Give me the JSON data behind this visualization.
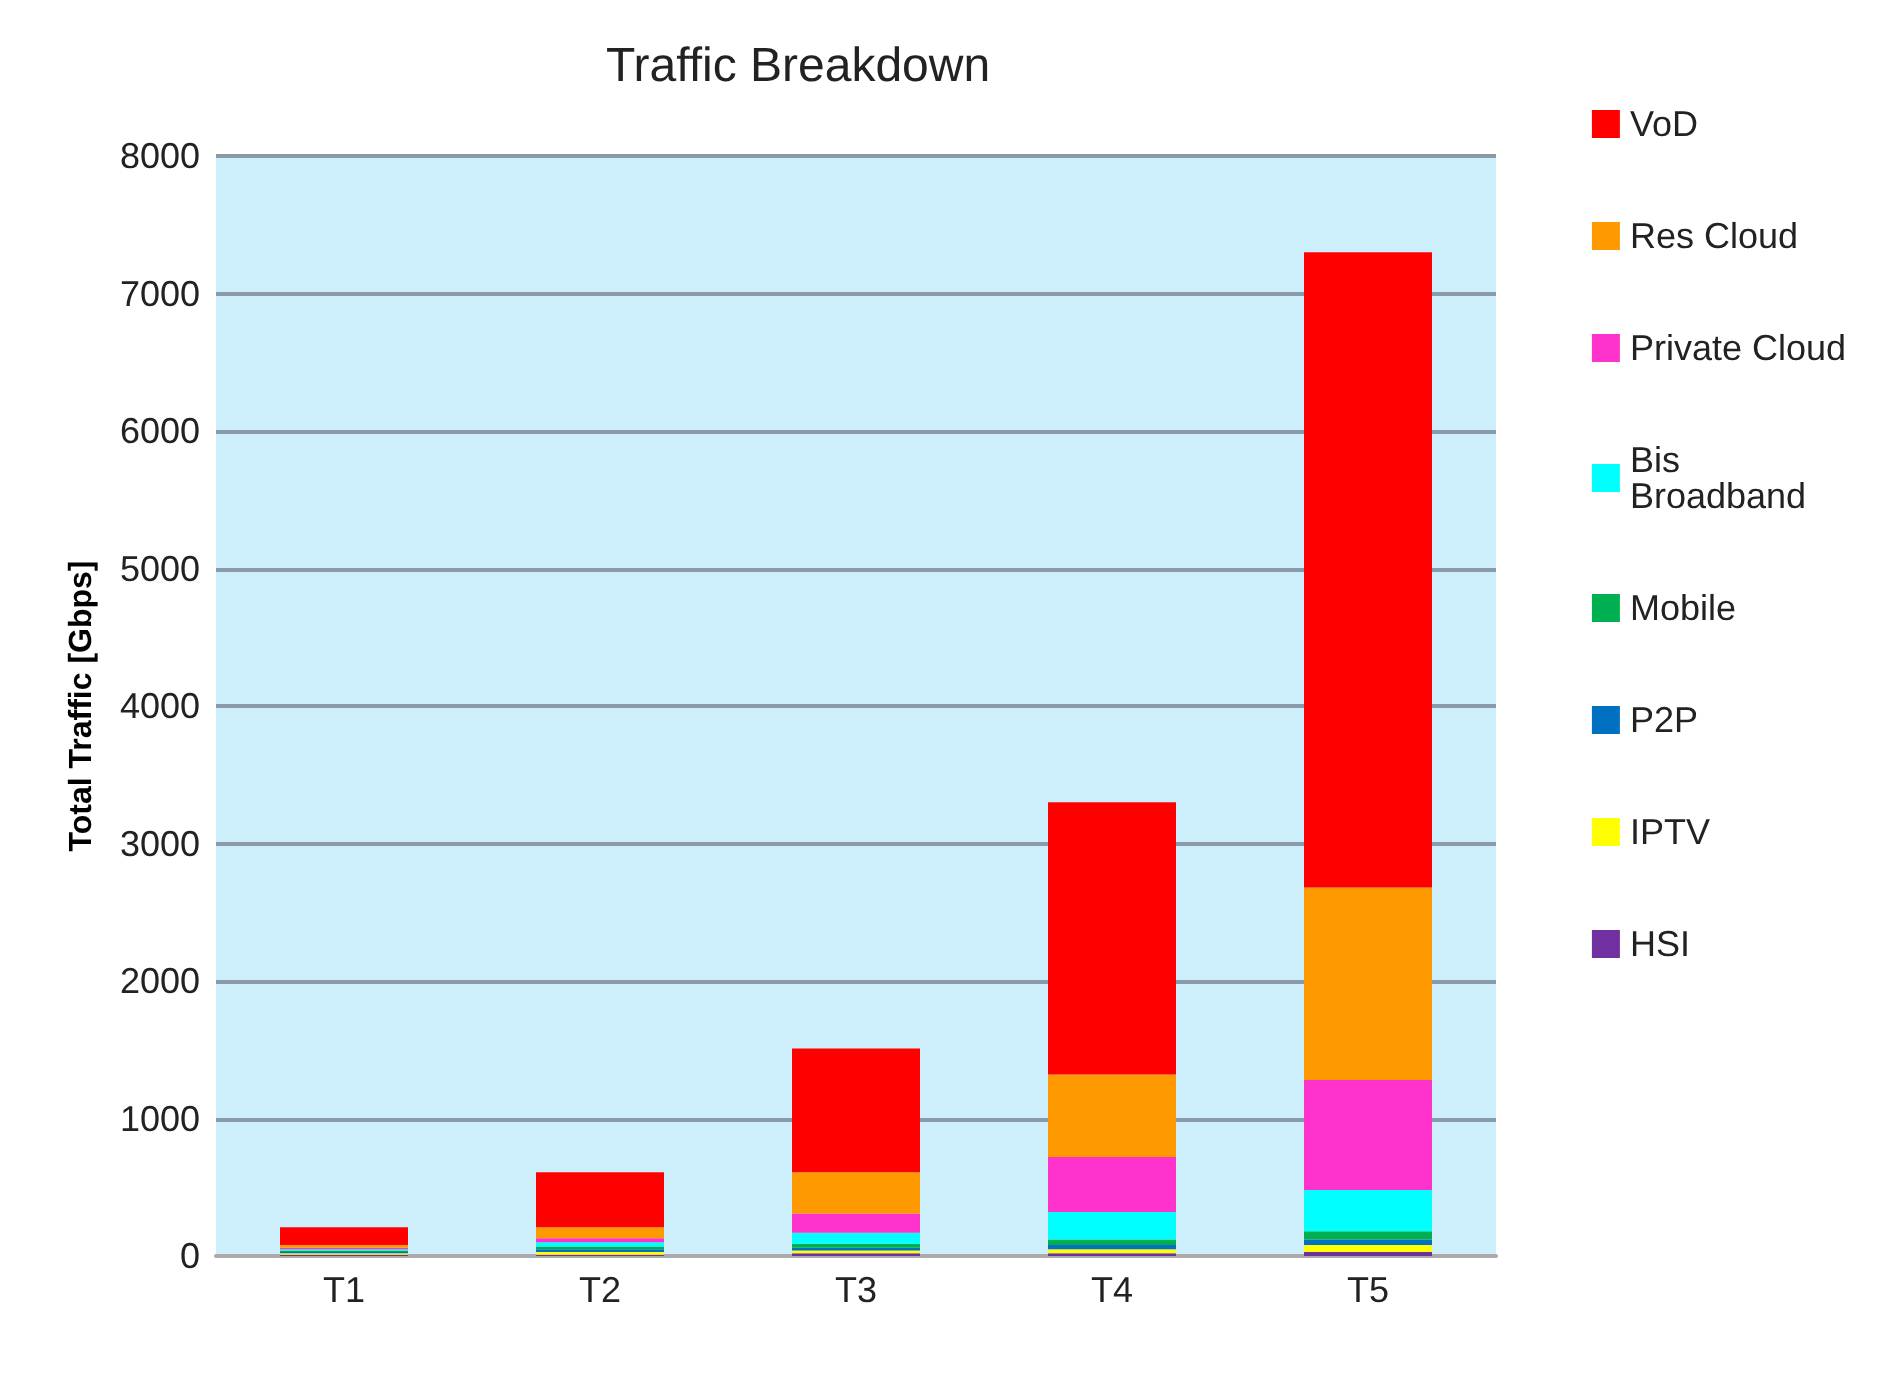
{
  "chart_data": {
    "type": "bar",
    "title": "Traffic Breakdown",
    "ylabel": "Total Traffic [Gbps]",
    "categories": [
      "T1",
      "T2",
      "T3",
      "T4",
      "T5"
    ],
    "stacked": true,
    "series": [
      {
        "name": "HSI",
        "color": "#7030a0",
        "values": [
          10,
          10,
          20,
          20,
          30
        ]
      },
      {
        "name": "IPTV",
        "color": "#ffff00",
        "values": [
          10,
          20,
          20,
          30,
          50
        ]
      },
      {
        "name": "P2P",
        "color": "#0070c0",
        "values": [
          10,
          20,
          20,
          30,
          40
        ]
      },
      {
        "name": "Mobile",
        "color": "#00b050",
        "values": [
          10,
          20,
          30,
          40,
          60
        ]
      },
      {
        "name": "Bis Broadband",
        "color": "#00ffff",
        "values": [
          10,
          30,
          80,
          200,
          300
        ]
      },
      {
        "name": "Private Cloud",
        "color": "#ff33cc",
        "values": [
          10,
          30,
          140,
          400,
          800
        ]
      },
      {
        "name": "Res Cloud",
        "color": "#ff9900",
        "values": [
          20,
          80,
          300,
          600,
          1400
        ]
      },
      {
        "name": "VoD",
        "color": "#ff0000",
        "values": [
          130,
          400,
          900,
          1980,
          4620
        ]
      }
    ],
    "ylim": [
      0,
      8000
    ],
    "yticks": [
      0,
      1000,
      2000,
      3000,
      4000,
      5000,
      6000,
      7000,
      8000
    ],
    "grid": "y",
    "legend": "right"
  }
}
